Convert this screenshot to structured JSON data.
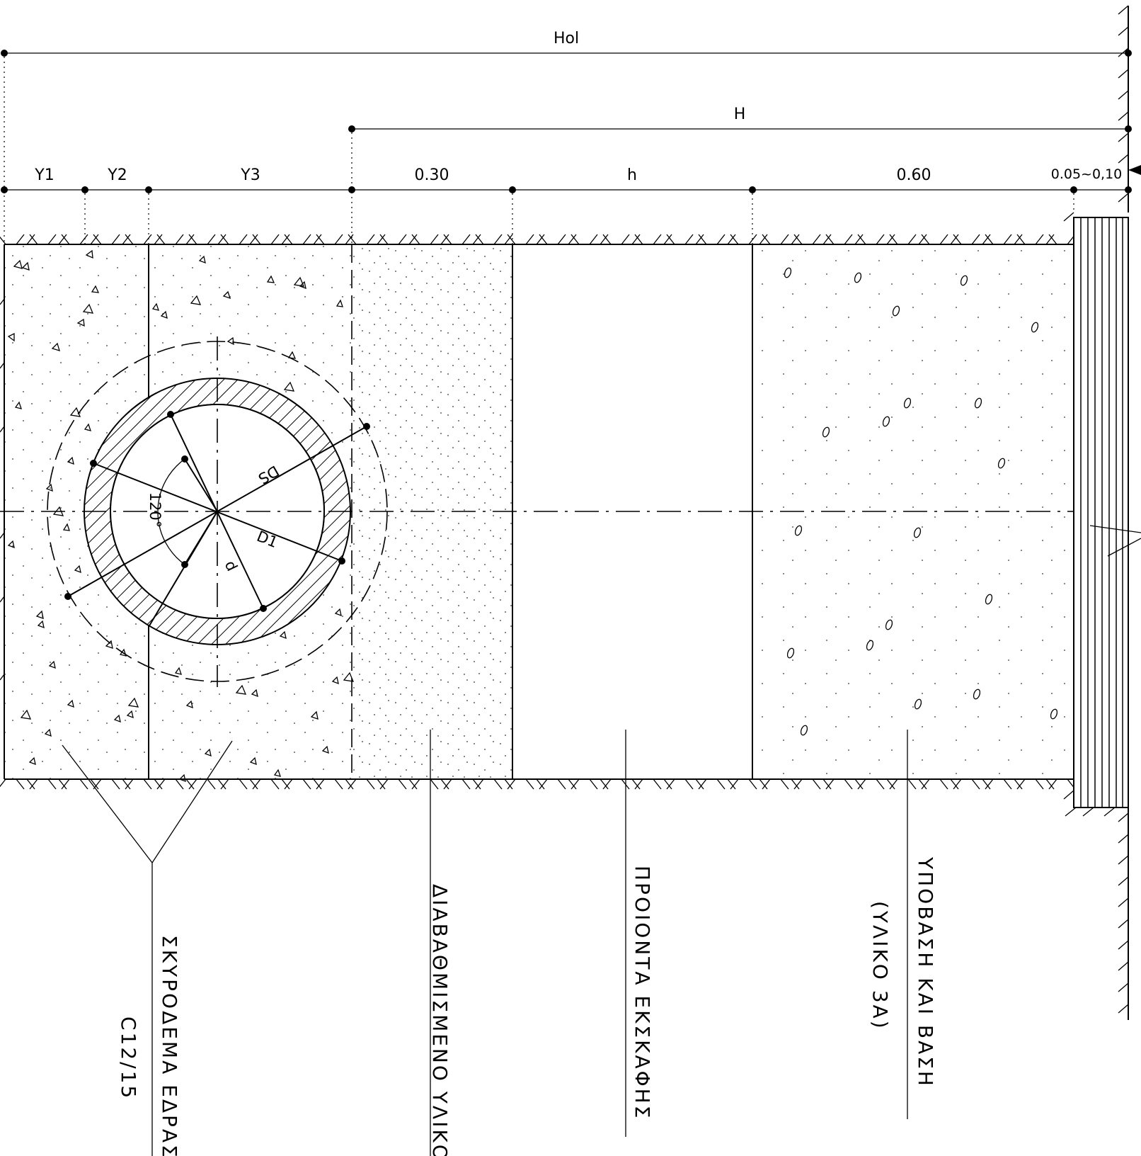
{
  "dimensions": {
    "hol": "Hol",
    "h_total": "H",
    "y1": "Y1",
    "y2": "Y2",
    "y3": "Y3",
    "d030": "0.30",
    "h_small": "h",
    "d060": "0.60",
    "d005": "0.05~0,10"
  },
  "pipe": {
    "ds": "DS",
    "d1": "D1",
    "d": "d",
    "angle": "120°"
  },
  "callouts": {
    "concrete": "ΣΚΥΡΟΔΕΜΑ ΕΔΡΑΣ",
    "concrete_class": "C12/15",
    "graded": "ΔΙΑΒΑΘΜΙΣΜΕΝΟ ΥΛΙΚΟ",
    "excavation": "ΠΡΟΙΟΝΤΑ ΕΚΣΚΑΦΗΣ",
    "subbase": "ΥΠΟΒΑΣΗ ΚΑΙ ΒΑΣΗ",
    "subbase_mat": "(ΥΛΙΚΟ 3Α)"
  }
}
